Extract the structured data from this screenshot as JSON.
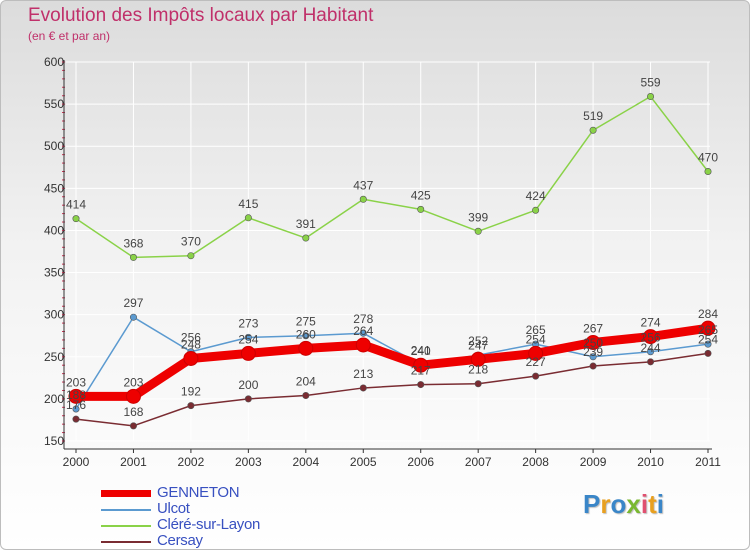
{
  "header": {
    "title": "Evolution des Impôts locaux par Habitant",
    "subtitle": "(en € et par an)"
  },
  "colors": {
    "title": "#c0306a",
    "gridline": "#ffffff",
    "axis": "#333333"
  },
  "chart_data": {
    "type": "line",
    "title": "Evolution des Impôts locaux par Habitant",
    "subtitle": "(en € et par an)",
    "xlabel": "",
    "ylabel": "",
    "ylim": [
      150,
      600
    ],
    "yticks": [
      150,
      200,
      250,
      300,
      350,
      400,
      450,
      500,
      550,
      600
    ],
    "categories": [
      "2000",
      "2001",
      "2002",
      "2003",
      "2004",
      "2005",
      "2006",
      "2007",
      "2008",
      "2009",
      "2010",
      "2011"
    ],
    "series": [
      {
        "name": "GENNETON",
        "color": "#ee0000",
        "values": [
          203,
          203,
          248,
          254,
          260,
          264,
          240,
          247,
          254,
          267,
          274,
          284
        ]
      },
      {
        "name": "Ulcot",
        "color": "#5b9ad0",
        "values": [
          188,
          297,
          256,
          273,
          275,
          278,
          241,
          252,
          265,
          250,
          256,
          265
        ]
      },
      {
        "name": "Cléré-sur-Layon",
        "color": "#8ad248",
        "values": [
          414,
          368,
          370,
          415,
          391,
          437,
          425,
          399,
          424,
          519,
          559,
          470
        ]
      },
      {
        "name": "Cersay",
        "color": "#7a2c32",
        "values": [
          176,
          168,
          192,
          200,
          204,
          213,
          217,
          218,
          227,
          239,
          244,
          254
        ]
      }
    ],
    "legend_position": "bottom-left"
  },
  "legend": {
    "items": [
      "GENNETON",
      "Ulcot",
      "Cléré-sur-Layon",
      "Cersay"
    ]
  },
  "logo": {
    "letters": [
      "P",
      "r",
      "o",
      "x",
      "i",
      "t",
      "i"
    ],
    "colors": [
      "#3a86c8",
      "#e8a020",
      "#3a86c8",
      "#7ab830",
      "#e05070",
      "#e8a020",
      "#3a86c8"
    ]
  }
}
